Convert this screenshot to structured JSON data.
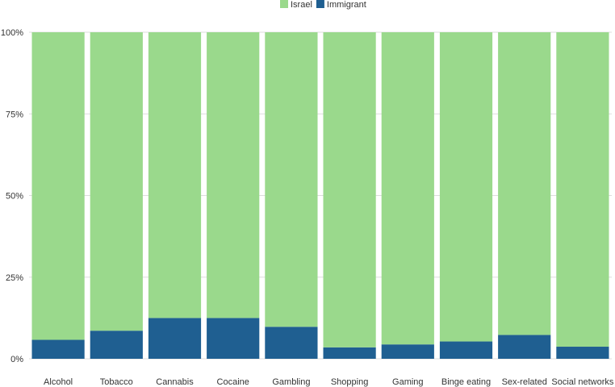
{
  "chart_data": {
    "type": "bar",
    "stacked": true,
    "percent": true,
    "categories": [
      "Alcohol",
      "Tobacco",
      "Cannabis",
      "Cocaine",
      "Gambling",
      "Shopping",
      "Gaming",
      "Binge eating",
      "Sex-related",
      "Social networks"
    ],
    "series": [
      {
        "name": "Immigrant",
        "color": "#1f5f91",
        "values": [
          5.8,
          8.6,
          12.5,
          12.5,
          9.8,
          3.5,
          4.4,
          5.3,
          7.3,
          3.7
        ]
      },
      {
        "name": "Israel",
        "color": "#9ad98c",
        "values": [
          94.2,
          91.4,
          87.5,
          87.5,
          90.2,
          96.5,
          95.6,
          94.7,
          92.7,
          96.3
        ]
      }
    ],
    "legend": {
      "placement": "top-center",
      "items": [
        "Israel",
        "Immigrant"
      ]
    },
    "y_ticks": [
      "0%",
      "25%",
      "50%",
      "75%",
      "100%"
    ],
    "ylim": [
      0,
      100
    ],
    "grid": true,
    "title": "",
    "xlabel": "",
    "ylabel": ""
  }
}
